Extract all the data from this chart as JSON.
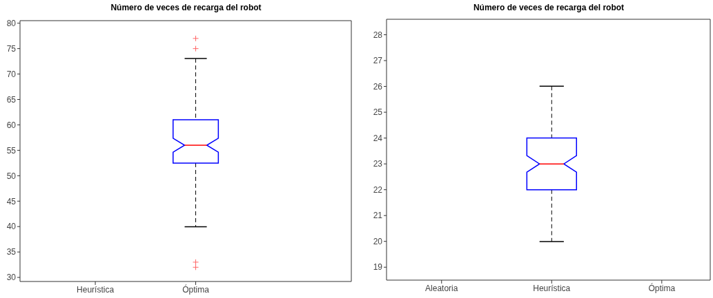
{
  "chart_data": [
    {
      "type": "box",
      "title": "Número de veces de recarga del robot",
      "categories": [
        "Heurística",
        "Óptima"
      ],
      "ylim": [
        29.2,
        80.5
      ],
      "yticks": [
        30,
        35,
        40,
        45,
        50,
        55,
        60,
        65,
        70,
        75,
        80
      ],
      "series": [
        {
          "color": "#0000ff",
          "boxes": [
            null,
            {
              "low": 40,
              "q1": 52.5,
              "median": 56,
              "q3": 61,
              "high": 73,
              "outliers": [
                32,
                33,
                75,
                77
              ]
            }
          ]
        }
      ]
    },
    {
      "type": "box",
      "title": "Número de veces de recarga del robot",
      "categories": [
        "Aleatoria",
        "Heurística",
        "Óptima"
      ],
      "ylim": [
        18.5,
        28.6
      ],
      "yticks": [
        19,
        20,
        21,
        22,
        23,
        24,
        25,
        26,
        27,
        28
      ],
      "series": [
        {
          "color": "#0000ff",
          "boxes": [
            null,
            {
              "low": 20,
              "q1": 22,
              "median": 23,
              "q3": 24,
              "high": 26
            },
            null
          ]
        }
      ]
    }
  ]
}
